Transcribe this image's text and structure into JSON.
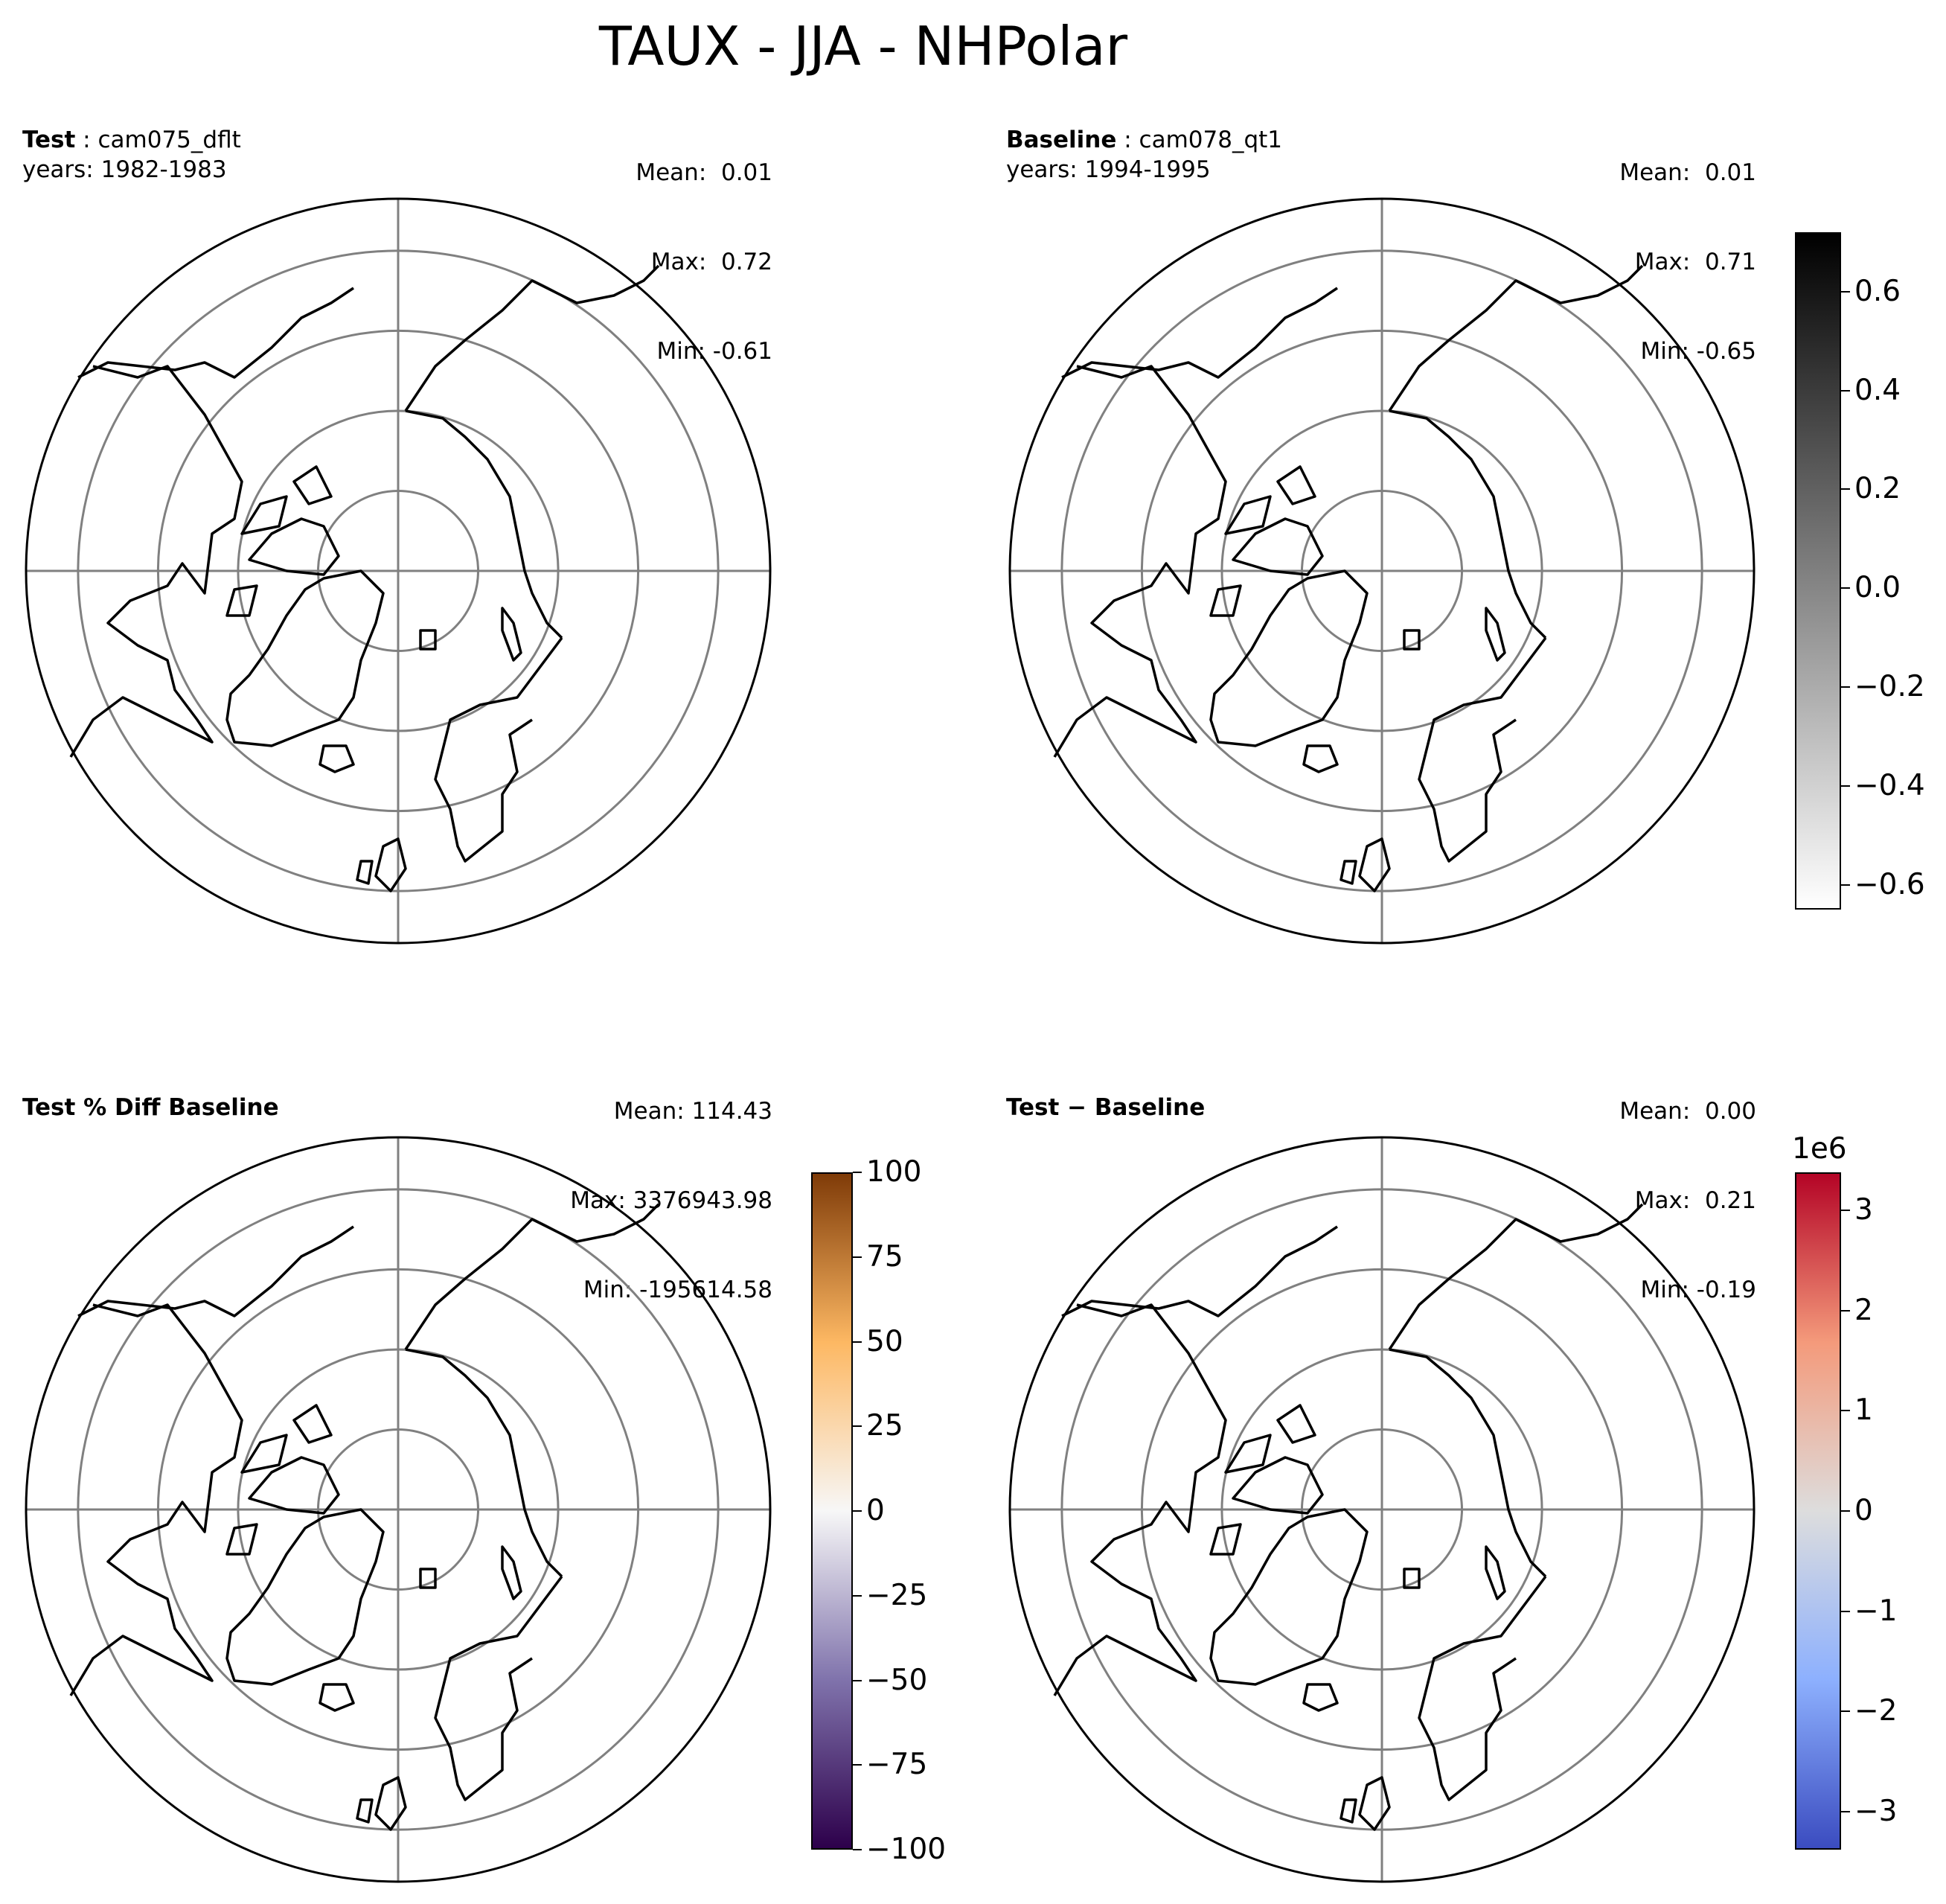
{
  "title": "TAUX - JJA - NHPolar",
  "panels": [
    {
      "id": "test",
      "label_bold": "Test",
      "label_sep": " : ",
      "label_case": "cam075_dflt",
      "years": "years: 1982-1983",
      "mean": "Mean:  0.01",
      "max": "Max:  0.72",
      "min": "Min: -0.61"
    },
    {
      "id": "baseline",
      "label_bold": "Baseline",
      "label_sep": " : ",
      "label_case": "cam078_qt1",
      "years": "years: 1994-1995",
      "mean": "Mean:  0.01",
      "max": "Max:  0.71",
      "min": "Min: -0.65"
    },
    {
      "id": "pctdiff",
      "label_bold": "Test % Diff Baseline",
      "label_sep": "",
      "label_case": "",
      "years": "",
      "mean": "Mean: 114.43",
      "max": "Max: 3376943.98",
      "min": "Min: -195614.58"
    },
    {
      "id": "diff",
      "label_bold": "Test − Baseline",
      "label_sep": "",
      "label_case": "",
      "years": "",
      "mean": "Mean:  0.00",
      "max": "Max:  0.21",
      "min": "Min: -0.19"
    }
  ],
  "colorbars": [
    {
      "id": "shared-gray",
      "colors": [
        "#ffffff",
        "#000000"
      ],
      "min": -0.65,
      "max": 0.72,
      "ticks": [
        -0.6,
        -0.4,
        -0.2,
        0.0,
        0.2,
        0.4,
        0.6
      ],
      "tick_labels": [
        "−0.6",
        "−0.4",
        "−0.2",
        "0.0",
        "0.2",
        "0.4",
        "0.6"
      ],
      "exponent": ""
    },
    {
      "id": "pct-puor",
      "colors": [
        "#2d004b",
        "#8073ac",
        "#f7f7f7",
        "#fdb863",
        "#7f3b08"
      ],
      "min": -100,
      "max": 100,
      "ticks": [
        -100,
        -75,
        -50,
        -25,
        0,
        25,
        50,
        75,
        100
      ],
      "tick_labels": [
        "−100",
        "−75",
        "−50",
        "−25",
        "0",
        "25",
        "50",
        "75",
        "100"
      ],
      "exponent": ""
    },
    {
      "id": "diff-coolwarm",
      "colors": [
        "#3b4cc0",
        "#8db0fe",
        "#dddddd",
        "#f49a7b",
        "#b40426"
      ],
      "min": -3.38,
      "max": 3.38,
      "ticks": [
        -3,
        -2,
        -1,
        0,
        1,
        2,
        3
      ],
      "tick_labels": [
        "−3",
        "−2",
        "−1",
        "0",
        "1",
        "2",
        "3"
      ],
      "exponent": "1e6"
    }
  ],
  "map": {
    "projection": "north-polar-stereographic",
    "gridline_color": "#808080",
    "coastline_color": "#000000",
    "parallels_count": 4,
    "meridians_count": 4
  }
}
